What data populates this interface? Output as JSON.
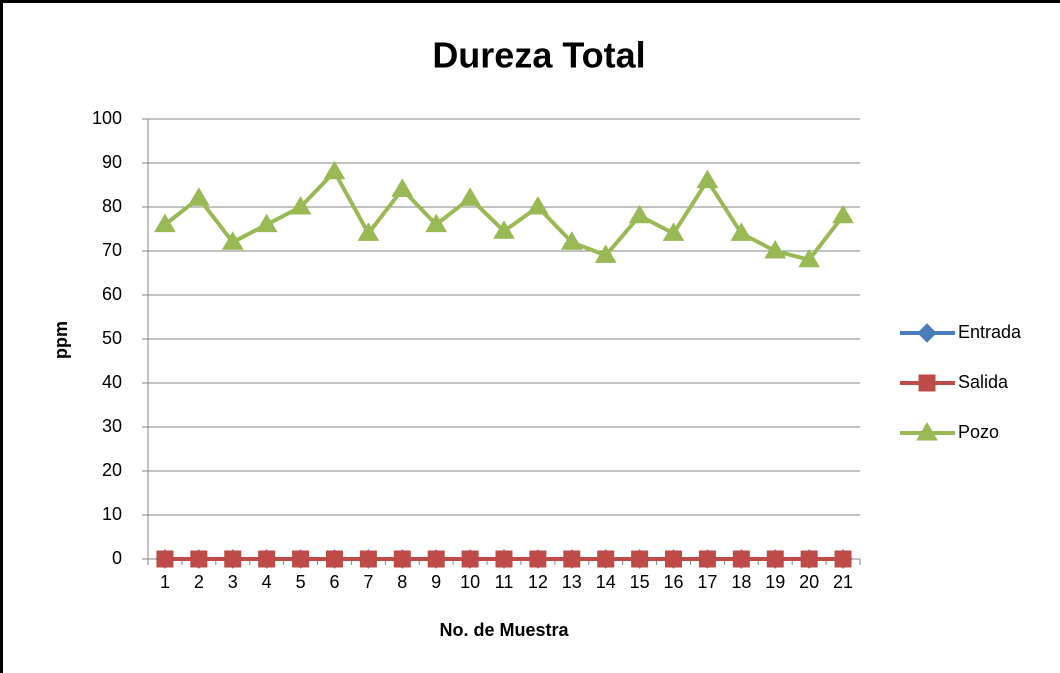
{
  "chart_data": {
    "type": "line",
    "title": "Dureza Total",
    "x_label": "No. de Muestra",
    "y_label": "ppm",
    "categories": [
      "1",
      "2",
      "3",
      "4",
      "5",
      "6",
      "7",
      "8",
      "9",
      "10",
      "11",
      "12",
      "13",
      "14",
      "15",
      "16",
      "17",
      "18",
      "19",
      "20",
      "21"
    ],
    "series": [
      {
        "name": "Entrada",
        "color": "#4a7ebb",
        "marker": "diamond",
        "values": [
          0,
          0,
          0,
          0,
          0,
          0,
          0,
          0,
          0,
          0,
          0,
          0,
          0,
          0,
          0,
          0,
          0,
          0,
          0,
          0,
          0
        ]
      },
      {
        "name": "Salida",
        "color": "#be4b48",
        "marker": "square",
        "values": [
          0,
          0,
          0,
          0,
          0,
          0,
          0,
          0,
          0,
          0,
          0,
          0,
          0,
          0,
          0,
          0,
          0,
          0,
          0,
          0,
          0
        ]
      },
      {
        "name": "Pozo",
        "color": "#98b954",
        "marker": "triangle",
        "values": [
          76,
          82,
          72,
          76,
          80,
          88,
          74,
          84,
          76,
          82,
          74.5,
          80,
          72,
          69,
          78,
          74,
          86,
          74,
          70,
          68,
          78
        ]
      }
    ],
    "ylim": [
      0,
      100
    ],
    "yticks": [
      0,
      10,
      20,
      30,
      40,
      50,
      60,
      70,
      80,
      90,
      100
    ],
    "grid": true,
    "legend": "right"
  }
}
